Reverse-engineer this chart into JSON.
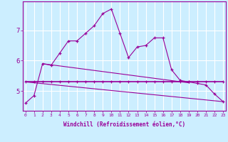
{
  "xlabel": "Windchill (Refroidissement éolien,°C)",
  "background_color": "#cceeff",
  "grid_color": "#ffffff",
  "line_color": "#990099",
  "x_hours": [
    0,
    1,
    2,
    3,
    4,
    5,
    6,
    7,
    8,
    9,
    10,
    11,
    12,
    13,
    14,
    15,
    16,
    17,
    18,
    19,
    20,
    21,
    22,
    23
  ],
  "series1": [
    4.6,
    4.85,
    5.9,
    5.85,
    6.25,
    6.65,
    6.65,
    6.9,
    7.15,
    7.55,
    7.7,
    6.9,
    6.1,
    6.45,
    6.5,
    6.75,
    6.75,
    5.7,
    5.35,
    5.3,
    5.25,
    5.2,
    4.9,
    4.65
  ],
  "series2": [
    5.3,
    5.3,
    5.3,
    5.3,
    5.3,
    5.3,
    5.3,
    5.3,
    5.3,
    5.3,
    5.3,
    5.3,
    5.3,
    5.3,
    5.3,
    5.3,
    5.3,
    5.3,
    5.3,
    5.3,
    5.3,
    5.3,
    5.3,
    5.3
  ],
  "series3_x": [
    2,
    19
  ],
  "series3_y": [
    5.9,
    5.27
  ],
  "series4_x": [
    0,
    23
  ],
  "series4_y": [
    5.3,
    4.65
  ],
  "ylim": [
    4.35,
    7.95
  ],
  "yticks": [
    5,
    6,
    7
  ],
  "xticks": [
    0,
    1,
    2,
    3,
    4,
    5,
    6,
    7,
    8,
    9,
    10,
    11,
    12,
    13,
    14,
    15,
    16,
    17,
    18,
    19,
    20,
    21,
    22,
    23
  ]
}
